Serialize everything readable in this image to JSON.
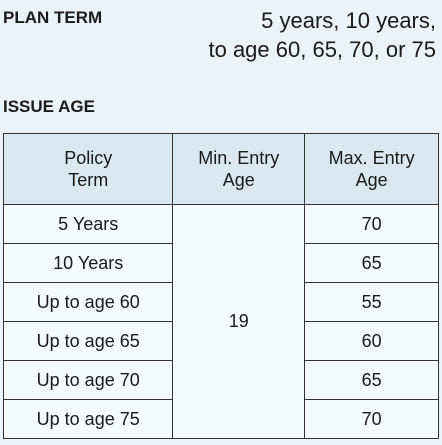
{
  "plan_term": {
    "label": "PLAN TERM",
    "lines": [
      "5 years, 10 years,",
      "to age 60, 65, 70, or 75"
    ]
  },
  "issue_age": {
    "label": "ISSUE AGE",
    "table": {
      "headers": [
        "Policy\nTerm",
        "Min. Entry\nAge",
        "Max. Entry\nAge"
      ],
      "min_entry_age": "19",
      "rows": [
        [
          "5 Years",
          "70"
        ],
        [
          "10 Years",
          "65"
        ],
        [
          "Up to age 60",
          "55"
        ],
        [
          "Up to age 65",
          "60"
        ],
        [
          "Up to age 70",
          "65"
        ],
        [
          "Up to age 75",
          "70"
        ]
      ]
    }
  }
}
